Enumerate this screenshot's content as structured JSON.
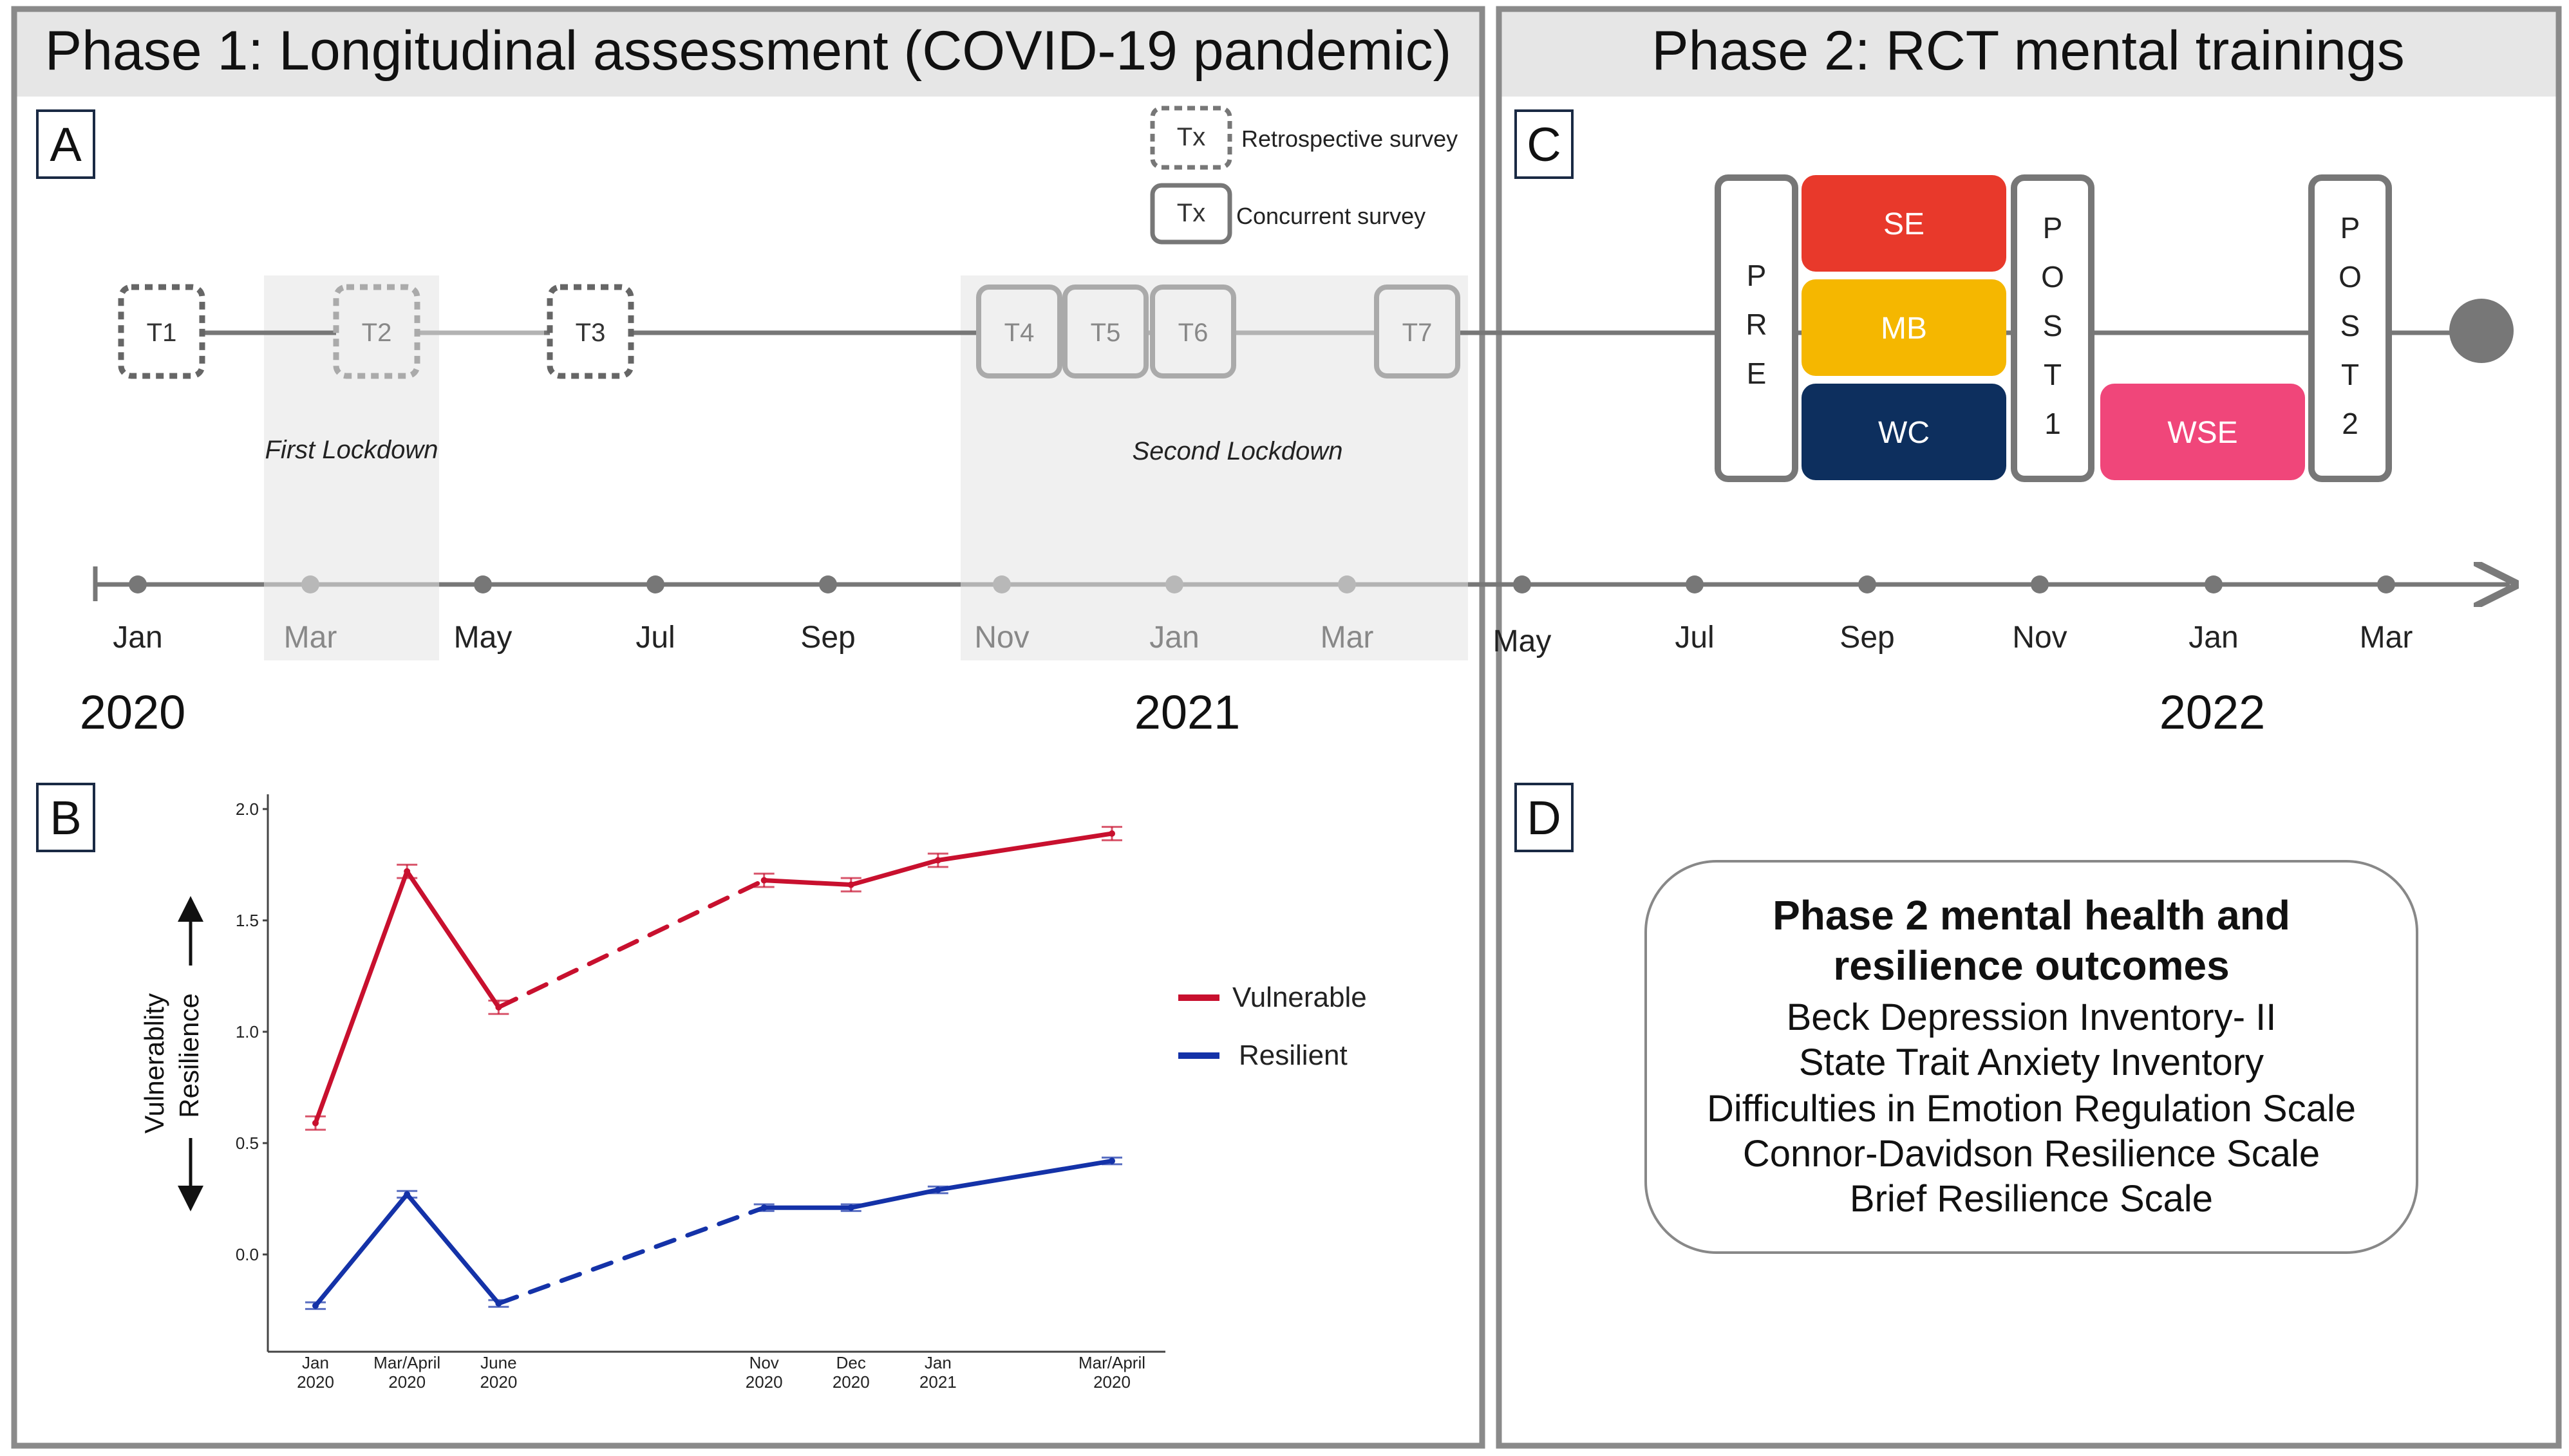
{
  "phase1": {
    "title": "Phase 1: Longitudinal assessment (COVID-19 pandemic)"
  },
  "phase2": {
    "title": "Phase 2: RCT mental trainings"
  },
  "panels": {
    "a": "A",
    "b": "B",
    "c": "C",
    "d": "D"
  },
  "legend_a": {
    "symbol": "Tx",
    "retrospective": "Retrospective survey",
    "concurrent": "Concurrent survey"
  },
  "timepoints": [
    "T1",
    "T2",
    "T3",
    "T4",
    "T5",
    "T6",
    "T7"
  ],
  "lockdowns": {
    "first": "First Lockdown",
    "second": "Second Lockdown"
  },
  "months": [
    "Jan",
    "Mar",
    "May",
    "Jul",
    "Sep",
    "Nov",
    "Jan",
    "Mar",
    "May",
    "Jul",
    "Sep",
    "Nov",
    "Jan",
    "Mar"
  ],
  "years": [
    "2020",
    "2021",
    "2022"
  ],
  "training": {
    "pre": [
      "P",
      "R",
      "E"
    ],
    "post1": [
      "P",
      "O",
      "S",
      "T",
      "1"
    ],
    "post2": [
      "P",
      "O",
      "S",
      "T",
      "2"
    ],
    "se": "SE",
    "mb": "MB",
    "wc": "WC",
    "wse": "WSE"
  },
  "colors": {
    "vulnerable": "#c8102e",
    "resilient": "#1432a8",
    "se": "#e8392b",
    "mb": "#f5b700",
    "wc": "#0d2f5e",
    "wse": "#f0467a",
    "frame": "#8a8a8a",
    "header_bg": "#e6e6e6",
    "lockdown_bg": "#f0f0f0"
  },
  "outcomes": {
    "title_line1": "Phase 2 mental health and",
    "title_line2": "resilience outcomes",
    "items": [
      "Beck Depression Inventory- II",
      "State Trait Anxiety Inventory",
      "Difficulties in Emotion Regulation Scale",
      "Connor-Davidson Resilience Scale",
      "Brief Resilience Scale"
    ]
  },
  "chart_data": {
    "type": "line",
    "categories": [
      "Jan 2020",
      "Mar/April 2020",
      "June 2020",
      "Nov 2020",
      "Dec 2020",
      "Jan 2021",
      "Mar/April 2020"
    ],
    "tick_labels": [
      [
        "Jan",
        "2020"
      ],
      [
        "Mar/April",
        "2020"
      ],
      [
        "June",
        "2020"
      ],
      [
        "Nov",
        "2020"
      ],
      [
        "Dec",
        "2020"
      ],
      [
        "Jan",
        "2021"
      ],
      [
        "Mar/April",
        "2020"
      ]
    ],
    "x": [
      0,
      1,
      2,
      4.9,
      5.85,
      6.8,
      8.7
    ],
    "series": [
      {
        "name": "Vulnerable",
        "values": [
          0.59,
          1.72,
          1.11,
          1.68,
          1.66,
          1.77,
          1.89
        ],
        "errors": [
          0.03,
          0.03,
          0.03,
          0.03,
          0.03,
          0.03,
          0.03
        ]
      },
      {
        "name": "Resilient",
        "values": [
          -0.23,
          0.27,
          -0.22,
          0.21,
          0.21,
          0.29,
          0.42
        ],
        "errors": [
          0.015,
          0.015,
          0.015,
          0.015,
          0.015,
          0.015,
          0.015
        ]
      }
    ],
    "dashed_segment": [
      2,
      3
    ],
    "ylim": [
      -0.35,
      2.02
    ],
    "yticks": [
      "2.0",
      "1.5",
      "1.0",
      "0.5",
      "0.0"
    ],
    "ylabel_top": "Vulnerablity",
    "ylabel_bottom": "Resilience",
    "legend": [
      "Vulnerable",
      "Resilient"
    ]
  }
}
